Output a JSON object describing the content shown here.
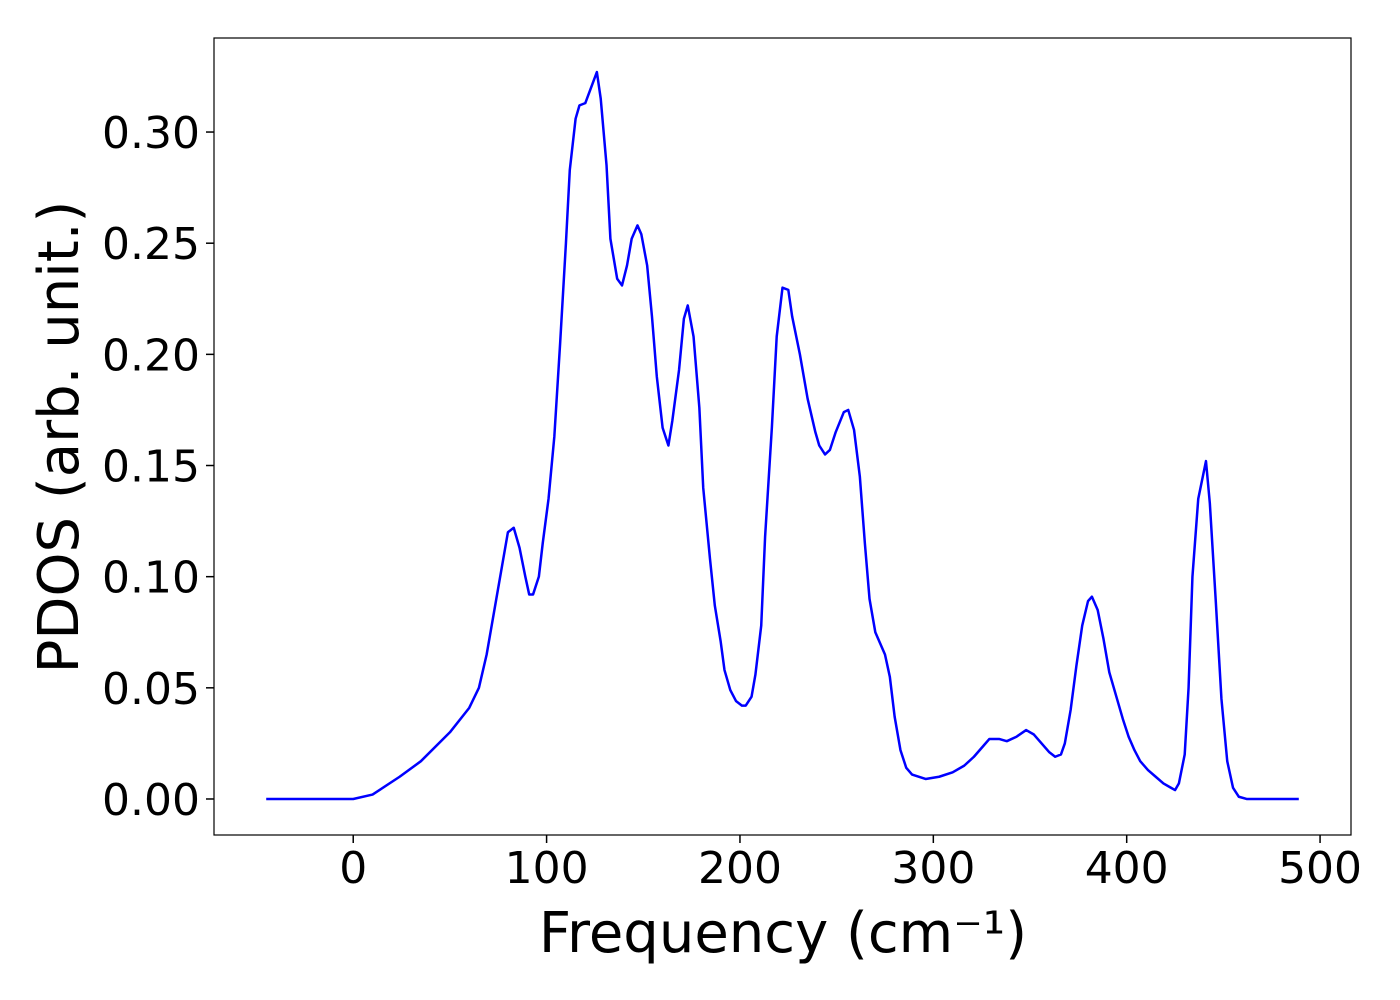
{
  "chart_data": {
    "type": "line",
    "x_label": "Frequency (cm⁻¹)",
    "y_label": "PDOS (arb. unit.)",
    "color": "#0000ff",
    "xlim": [
      -72,
      516
    ],
    "ylim": [
      -0.0162,
      0.3423
    ],
    "xticks": [
      0,
      100,
      200,
      300,
      400,
      500
    ],
    "yticks": [
      {
        "value": 0,
        "label": "0.00"
      },
      {
        "value": 0.05,
        "label": "0.05"
      },
      {
        "value": 0.1,
        "label": "0.10"
      },
      {
        "value": 0.15,
        "label": "0.15"
      },
      {
        "value": 0.2,
        "label": "0.20"
      },
      {
        "value": 0.25,
        "label": "0.25"
      },
      {
        "value": 0.3,
        "label": "0.30"
      }
    ],
    "x": [
      -45,
      0,
      10,
      24,
      35,
      50,
      60,
      65,
      69,
      74,
      77,
      80,
      83,
      86,
      89,
      91,
      93,
      96,
      98,
      101,
      104,
      107,
      110,
      112,
      115,
      117,
      120,
      126,
      128,
      131,
      133,
      136.5,
      139,
      141.6,
      144,
      147,
      149,
      152,
      154.5,
      157,
      160,
      163,
      165,
      168.5,
      171,
      173,
      176,
      179,
      181,
      184.5,
      187,
      190,
      192,
      195,
      198,
      201,
      203,
      206,
      208,
      211,
      213,
      216.5,
      219,
      222,
      225,
      227,
      231,
      235,
      239,
      241,
      244,
      246.5,
      249.5,
      253.7,
      256,
      259,
      262,
      264.6,
      267,
      270,
      275,
      277.5,
      280,
      283,
      286,
      289,
      296,
      303,
      310,
      316,
      321,
      326,
      329,
      334,
      338,
      343,
      348,
      352,
      356,
      360,
      363,
      366,
      368,
      371,
      374,
      377,
      380,
      382,
      385,
      388,
      391,
      395,
      398,
      401,
      404,
      407,
      411,
      415,
      419,
      423,
      425,
      427,
      430,
      432,
      434,
      437,
      441,
      443,
      446,
      449,
      452,
      455,
      458,
      462,
      489
    ],
    "values": [
      0,
      0,
      0.002,
      0.01,
      0.017,
      0.03,
      0.041,
      0.05,
      0.065,
      0.09,
      0.105,
      0.12,
      0.122,
      0.113,
      0.1,
      0.092,
      0.092,
      0.1,
      0.115,
      0.135,
      0.163,
      0.205,
      0.25,
      0.283,
      0.306,
      0.312,
      0.313,
      0.327,
      0.315,
      0.285,
      0.252,
      0.234,
      0.231,
      0.24,
      0.252,
      0.258,
      0.254,
      0.24,
      0.217,
      0.19,
      0.167,
      0.159,
      0.17,
      0.193,
      0.216,
      0.222,
      0.208,
      0.176,
      0.14,
      0.108,
      0.087,
      0.071,
      0.058,
      0.049,
      0.044,
      0.042,
      0.042,
      0.046,
      0.056,
      0.078,
      0.118,
      0.167,
      0.208,
      0.23,
      0.229,
      0.217,
      0.2,
      0.18,
      0.165,
      0.159,
      0.155,
      0.157,
      0.165,
      0.174,
      0.175,
      0.166,
      0.145,
      0.115,
      0.09,
      0.075,
      0.065,
      0.055,
      0.037,
      0.022,
      0.014,
      0.011,
      0.009,
      0.01,
      0.012,
      0.015,
      0.019,
      0.024,
      0.027,
      0.027,
      0.026,
      0.028,
      0.031,
      0.029,
      0.025,
      0.021,
      0.019,
      0.02,
      0.025,
      0.04,
      0.06,
      0.078,
      0.089,
      0.091,
      0.085,
      0.072,
      0.057,
      0.045,
      0.036,
      0.028,
      0.022,
      0.017,
      0.013,
      0.01,
      0.007,
      0.005,
      0.004,
      0.007,
      0.02,
      0.05,
      0.1,
      0.135,
      0.152,
      0.133,
      0.09,
      0.045,
      0.017,
      0.005,
      0.001,
      0,
      0
    ]
  }
}
